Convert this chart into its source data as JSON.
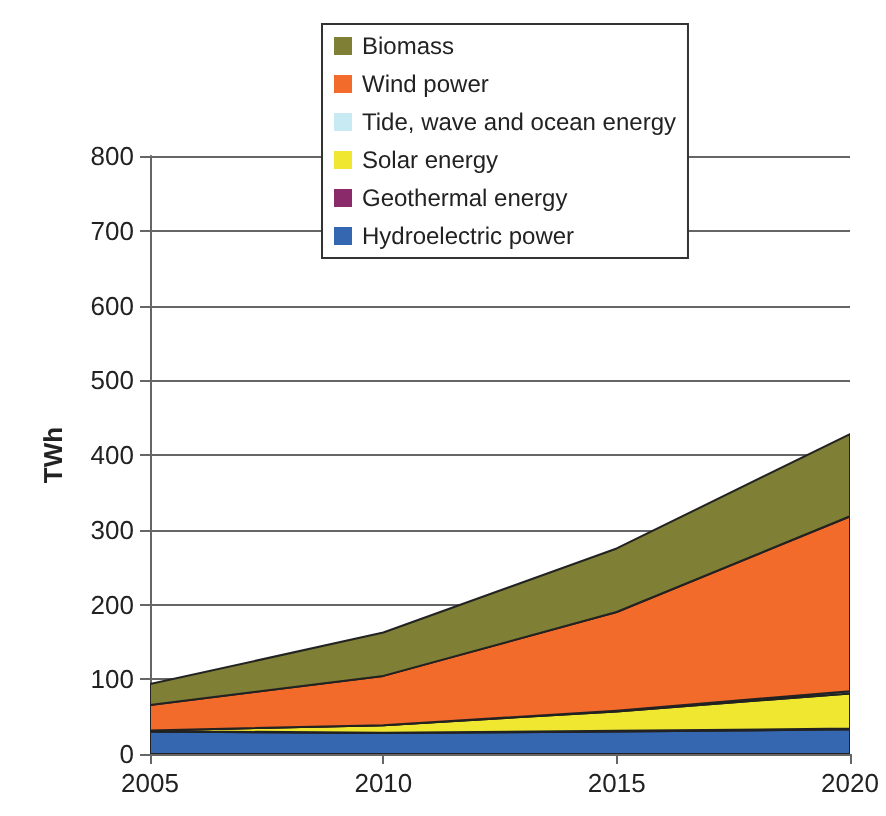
{
  "chart_data": {
    "type": "area",
    "stacked": true,
    "ylabel": "TWh",
    "x": [
      2005,
      2010,
      2015,
      2020
    ],
    "series": [
      {
        "name": "Hydroelectric power",
        "color": "#3566b0",
        "values": [
          30,
          28,
          30,
          33
        ]
      },
      {
        "name": "Geothermal energy",
        "color": "#8b2a6a",
        "values": [
          0.5,
          0.5,
          1,
          1
        ]
      },
      {
        "name": "Solar energy",
        "color": "#f0e830",
        "values": [
          1,
          10,
          26,
          47
        ]
      },
      {
        "name": "Tide, wave and ocean energy",
        "color": "#c8eaf2",
        "values": [
          0,
          0,
          1,
          3
        ]
      },
      {
        "name": "Wind power",
        "color": "#f26b2a",
        "values": [
          34,
          66,
          132,
          234
        ]
      },
      {
        "name": "Biomass",
        "color": "#7f8035",
        "values": [
          28,
          58,
          85,
          110
        ]
      }
    ],
    "xlim": [
      2005,
      2020
    ],
    "xticks": [
      2005,
      2010,
      2015,
      2020
    ],
    "ylim": [
      0,
      800
    ],
    "yticks": [
      0,
      100,
      200,
      300,
      400,
      500,
      600,
      700,
      800
    ],
    "grid": "y",
    "legend": "top"
  }
}
